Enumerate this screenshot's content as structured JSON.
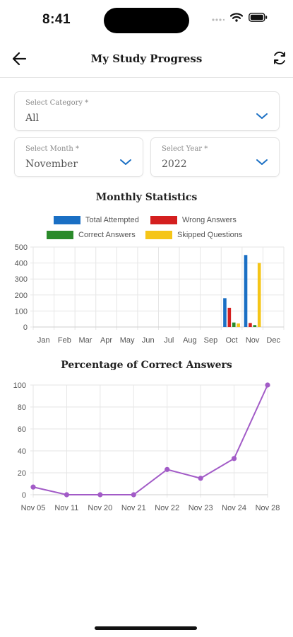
{
  "status_bar": {
    "time": "8:41"
  },
  "header": {
    "title": "My Study Progress"
  },
  "filters": {
    "category": {
      "label": "Select Category *",
      "value": "All"
    },
    "month": {
      "label": "Select Month *",
      "value": "November"
    },
    "year": {
      "label": "Select Year *",
      "value": "2022"
    }
  },
  "colors": {
    "total_attempted": "#1a6fc4",
    "wrong_answers": "#d41f1f",
    "correct_answers": "#2a8a2a",
    "skipped_questions": "#f5c518",
    "line": "#a25bc7"
  },
  "chart_data": [
    {
      "type": "bar",
      "title": "Monthly Statistics",
      "categories": [
        "Jan",
        "Feb",
        "Mar",
        "Apr",
        "May",
        "Jun",
        "Jul",
        "Aug",
        "Sep",
        "Oct",
        "Nov",
        "Dec"
      ],
      "series": [
        {
          "name": "Total Attempted",
          "values": [
            0,
            0,
            0,
            0,
            0,
            0,
            0,
            0,
            0,
            180,
            450,
            0
          ]
        },
        {
          "name": "Wrong Answers",
          "values": [
            0,
            0,
            0,
            0,
            0,
            0,
            0,
            0,
            0,
            120,
            25,
            0
          ]
        },
        {
          "name": "Correct Answers",
          "values": [
            0,
            0,
            0,
            0,
            0,
            0,
            0,
            0,
            0,
            28,
            12,
            0
          ]
        },
        {
          "name": "Skipped Questions",
          "values": [
            0,
            0,
            0,
            0,
            0,
            0,
            0,
            0,
            0,
            22,
            400,
            0
          ]
        }
      ],
      "ylim": [
        0,
        500
      ],
      "yticks": [
        0,
        100,
        200,
        300,
        400,
        500
      ],
      "grid": true,
      "legend": "top"
    },
    {
      "type": "line",
      "title": "Percentage of Correct Answers",
      "x": [
        "Nov 05",
        "Nov 11",
        "Nov 20",
        "Nov 21",
        "Nov 22",
        "Nov 23",
        "Nov 24",
        "Nov 28"
      ],
      "y": [
        7,
        0,
        0,
        0,
        23,
        15,
        33,
        100
      ],
      "ylim": [
        0,
        100
      ],
      "yticks": [
        0,
        20,
        40,
        60,
        80,
        100
      ],
      "grid": true
    }
  ]
}
